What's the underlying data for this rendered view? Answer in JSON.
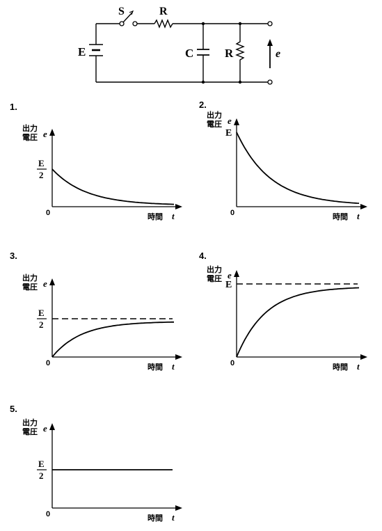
{
  "circuit": {
    "battery_label": "E",
    "switch_label": "S",
    "series_resistor_label": "R",
    "capacitor_label": "C",
    "shunt_resistor_label": "R",
    "output_label": "e"
  },
  "graphs": [
    {
      "number": "1.",
      "ylabel_line1": "出力",
      "ylabel_line2": "電圧",
      "ylabel_var": "e",
      "xlabel": "時間",
      "xlabel_var": "t",
      "origin": "0",
      "level_numerator": "E",
      "level_denominator": "2",
      "level_single": "",
      "curve": "decay-from-half"
    },
    {
      "number": "2.",
      "ylabel_line1": "出力",
      "ylabel_line2": "電圧",
      "ylabel_var": "e",
      "xlabel": "時間",
      "xlabel_var": "t",
      "origin": "0",
      "level_numerator": "",
      "level_denominator": "",
      "level_single": "E",
      "curve": "decay-from-full"
    },
    {
      "number": "3.",
      "ylabel_line1": "出力",
      "ylabel_line2": "電圧",
      "ylabel_var": "e",
      "xlabel": "時間",
      "xlabel_var": "t",
      "origin": "0",
      "level_numerator": "E",
      "level_denominator": "2",
      "level_single": "",
      "curve": "rise-to-half"
    },
    {
      "number": "4.",
      "ylabel_line1": "出力",
      "ylabel_line2": "電圧",
      "ylabel_var": "e",
      "xlabel": "時間",
      "xlabel_var": "t",
      "origin": "0",
      "level_numerator": "",
      "level_denominator": "",
      "level_single": "E",
      "curve": "rise-to-full"
    },
    {
      "number": "5.",
      "ylabel_line1": "出力",
      "ylabel_line2": "電圧",
      "ylabel_var": "e",
      "xlabel": "時間",
      "xlabel_var": "t",
      "origin": "0",
      "level_numerator": "E",
      "level_denominator": "2",
      "level_single": "",
      "curve": "constant-half"
    }
  ]
}
